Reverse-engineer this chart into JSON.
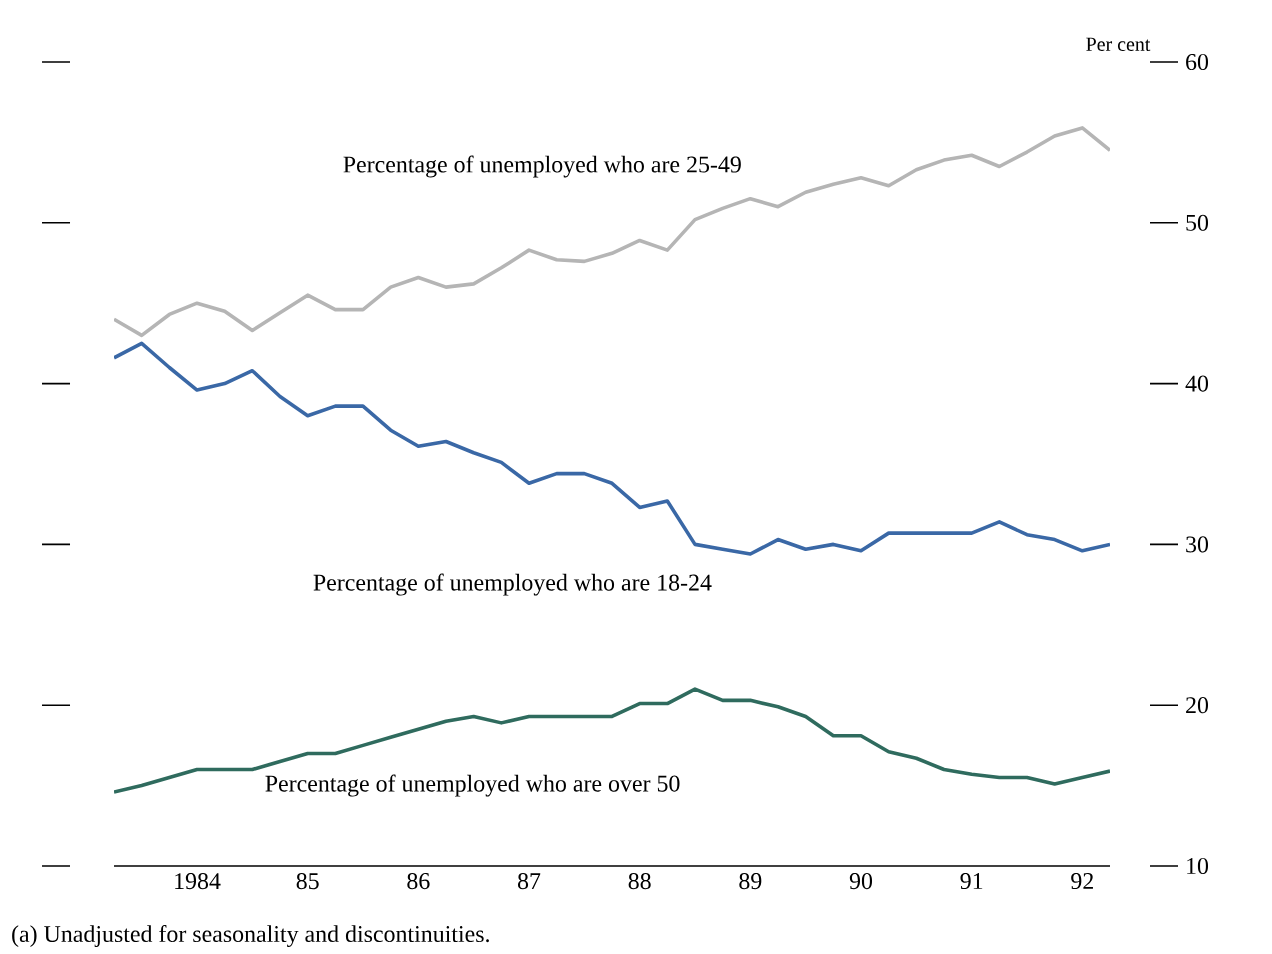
{
  "chart_data": {
    "type": "line",
    "ylabel": "Per cent",
    "categories": [
      null,
      null,
      null,
      "1984",
      null,
      null,
      null,
      "85",
      null,
      null,
      null,
      "86",
      null,
      null,
      null,
      "87",
      null,
      null,
      null,
      "88",
      null,
      null,
      null,
      "89",
      null,
      null,
      null,
      "90",
      null,
      null,
      null,
      "91",
      null,
      null,
      null,
      "92",
      null
    ],
    "series": [
      {
        "name": "Percentage of unemployed who are 25-49",
        "color": "#b5b5b5",
        "values": [
          44.0,
          43.0,
          44.3,
          45.0,
          44.5,
          43.3,
          44.4,
          45.5,
          44.6,
          44.6,
          46.0,
          46.6,
          46.0,
          46.2,
          47.2,
          48.3,
          47.7,
          47.6,
          48.1,
          48.9,
          48.3,
          50.2,
          50.9,
          51.5,
          51.0,
          51.9,
          52.4,
          52.8,
          52.3,
          53.3,
          53.9,
          54.2,
          53.5,
          54.4,
          55.4,
          55.9,
          54.5
        ]
      },
      {
        "name": "Percentage of unemployed who are 18-24",
        "color": "#3a68a6",
        "values": [
          41.6,
          42.5,
          41.0,
          39.6,
          40.0,
          40.8,
          39.2,
          38.0,
          38.6,
          38.6,
          37.1,
          36.1,
          36.4,
          35.7,
          35.1,
          33.8,
          34.4,
          34.4,
          33.8,
          32.3,
          32.7,
          30.0,
          29.7,
          29.4,
          30.3,
          29.7,
          30.0,
          29.6,
          30.7,
          30.7,
          30.7,
          30.7,
          31.4,
          30.6,
          30.3,
          29.6,
          30.0
        ]
      },
      {
        "name": "Percentage of unemployed who are over 50",
        "color": "#2f6b5e",
        "values": [
          14.6,
          15.0,
          15.5,
          16.0,
          16.0,
          16.0,
          16.5,
          17.0,
          17.0,
          17.5,
          18.0,
          18.5,
          19.0,
          19.3,
          18.9,
          19.3,
          19.3,
          19.3,
          19.3,
          20.1,
          20.1,
          21.0,
          20.3,
          20.3,
          19.9,
          19.3,
          18.1,
          18.1,
          17.1,
          16.7,
          16.0,
          15.7,
          15.5,
          15.5,
          15.1,
          15.5,
          15.9
        ]
      }
    ],
    "ylim": [
      10,
      60
    ],
    "yticks": [
      10,
      20,
      30,
      40,
      50,
      60
    ],
    "annotations": [
      "(a)   Unadjusted for seasonality and discontinuities."
    ]
  }
}
